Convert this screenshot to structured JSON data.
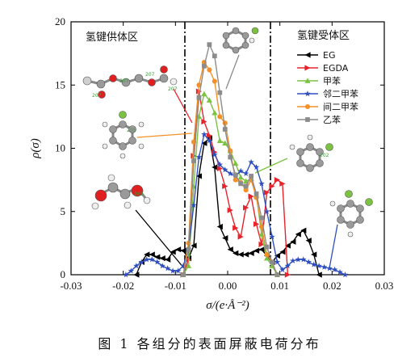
{
  "caption": "图 1   各组分的表面屏蔽电荷分布",
  "chart_data": {
    "type": "line",
    "xlabel": "σ/(e·Å⁻²)",
    "ylabel": "ρ(σ)",
    "xlim": [
      -0.03,
      0.03
    ],
    "ylim": [
      0,
      20
    ],
    "x_ticks": [
      "-0.03",
      "-0.02",
      "-0.01",
      "0.00",
      "0.01",
      "0.02",
      "0.03"
    ],
    "y_ticks": [
      "0",
      "5",
      "10",
      "15",
      "20"
    ],
    "grid": false,
    "legend_position": "top-right",
    "region_labels": {
      "donor": "氢键供体区",
      "acceptor": "氢键受体区"
    },
    "vlines": [
      -0.0082,
      0.0082
    ],
    "molecule_labels": [
      "207",
      "207",
      "207",
      "207",
      "205",
      "203",
      "202"
    ],
    "series": [
      {
        "name": "EG",
        "color": "#000000",
        "marker": "triangle-left",
        "x": [
          -0.0175,
          -0.0165,
          -0.0155,
          -0.0145,
          -0.0135,
          -0.0125,
          -0.0115,
          -0.0105,
          -0.0095,
          -0.0085,
          -0.0075,
          -0.0065,
          -0.0055,
          -0.0045,
          -0.0035,
          -0.0025,
          -0.0015,
          -0.0005,
          0.0005,
          0.0015,
          0.0025,
          0.0035,
          0.0045,
          0.0055,
          0.0065,
          0.0075,
          0.0085,
          0.0095,
          0.0105,
          0.0115,
          0.0125,
          0.0135,
          0.0145,
          0.0155,
          0.0165,
          0.0175
        ],
        "y": [
          0,
          1.0,
          1.6,
          1.6,
          1.4,
          1.3,
          1.2,
          1.8,
          2.0,
          1.9,
          1.3,
          2.3,
          7.8,
          10.4,
          10.8,
          8.5,
          3.8,
          2.9,
          2.0,
          1.7,
          1.6,
          1.6,
          1.7,
          1.9,
          2.0,
          1.5,
          1.0,
          1.5,
          1.8,
          2.3,
          2.6,
          3.2,
          3.5,
          2.7,
          1.6,
          0
        ]
      },
      {
        "name": "EGDA",
        "color": "#e8232b",
        "marker": "triangle-right",
        "x": [
          -0.0085,
          -0.0075,
          -0.0065,
          -0.0055,
          -0.0045,
          -0.0035,
          -0.0025,
          -0.0015,
          -0.0005,
          0.0005,
          0.0015,
          0.0025,
          0.0035,
          0.0045,
          0.0055,
          0.0065,
          0.0075,
          0.0085,
          0.0095,
          0.0105,
          0.0115
        ],
        "y": [
          0,
          1.2,
          9.4,
          14.5,
          12.1,
          11.0,
          9.7,
          8.4,
          7.0,
          5.1,
          3.7,
          3.0,
          5.3,
          6.2,
          4.0,
          2.4,
          6.5,
          7.0,
          7.5,
          7.2,
          0
        ]
      },
      {
        "name": "甲苯",
        "color": "#7cc242",
        "marker": "triangle-up",
        "x": [
          -0.0085,
          -0.0075,
          -0.0065,
          -0.0055,
          -0.0045,
          -0.0035,
          -0.0025,
          -0.0015,
          -0.0005,
          0.0005,
          0.0015,
          0.0025,
          0.0035,
          0.0045,
          0.0055,
          0.0065,
          0.0075,
          0.0085,
          0.0095
        ],
        "y": [
          0,
          0.7,
          7.0,
          12.5,
          14.3,
          13.8,
          12.8,
          10.6,
          10.4,
          9.8,
          8.8,
          7.7,
          7.4,
          7.6,
          6.3,
          3.2,
          1.3,
          0.7,
          0
        ]
      },
      {
        "name": "邻二甲苯",
        "color": "#2f4fbf",
        "marker": "star",
        "x": [
          -0.0195,
          -0.0185,
          -0.0175,
          -0.0165,
          -0.0155,
          -0.0145,
          -0.0135,
          -0.0125,
          -0.0115,
          -0.0105,
          -0.0095,
          -0.0085,
          -0.0075,
          -0.0065,
          -0.0055,
          -0.0045,
          -0.0035,
          -0.0025,
          -0.0015,
          -0.0005,
          0.0005,
          0.0015,
          0.0025,
          0.0035,
          0.0045,
          0.0055,
          0.0065,
          0.0075,
          0.0085,
          0.0095,
          0.0105,
          0.0115,
          0.0125,
          0.0135,
          0.0145,
          0.0155,
          0.0165,
          0.0175,
          0.0185,
          0.0195,
          0.0205,
          0.0215,
          0.0225
        ],
        "y": [
          0,
          0.3,
          0.7,
          1.0,
          1.2,
          1.2,
          1.0,
          0.7,
          0.5,
          0.3,
          0.3,
          0.7,
          2.0,
          5.5,
          9.3,
          11.1,
          10.6,
          9.5,
          8.7,
          8.3,
          8.0,
          7.8,
          8.2,
          8.0,
          8.9,
          8.5,
          7.2,
          5.0,
          3.0,
          1.0,
          0.4,
          0.7,
          1.1,
          1.2,
          1.2,
          1.0,
          0.8,
          0.7,
          0.6,
          0.5,
          0.4,
          0.2,
          0
        ]
      },
      {
        "name": "间二甲苯",
        "color": "#f39028",
        "marker": "circle",
        "x": [
          -0.0085,
          -0.0075,
          -0.0065,
          -0.0055,
          -0.0045,
          -0.0035,
          -0.0025,
          -0.0015,
          -0.0005,
          0.0005,
          0.0015,
          0.0025,
          0.0035,
          0.0045,
          0.0055,
          0.0065,
          0.0075,
          0.0085,
          0.0095
        ],
        "y": [
          0,
          2.5,
          10.5,
          15.0,
          16.8,
          16.2,
          15.3,
          12.5,
          12.0,
          9.8,
          7.5,
          7.3,
          6.7,
          7.5,
          6.1,
          3.8,
          1.6,
          1.0,
          0
        ]
      },
      {
        "name": "乙苯",
        "color": "#8c8c8c",
        "marker": "square",
        "x": [
          -0.0085,
          -0.0075,
          -0.0065,
          -0.0055,
          -0.0045,
          -0.0035,
          -0.0025,
          -0.0015,
          -0.0005,
          0.0005,
          0.0015,
          0.0025,
          0.0035,
          0.0045,
          0.0055,
          0.0065,
          0.0075,
          0.0085,
          0.0095
        ],
        "y": [
          0,
          2.0,
          9.0,
          14.0,
          16.5,
          18.2,
          17.3,
          14.4,
          11.5,
          9.3,
          7.9,
          7.2,
          7.0,
          7.8,
          6.4,
          4.5,
          2.2,
          1.0,
          0
        ]
      }
    ]
  }
}
